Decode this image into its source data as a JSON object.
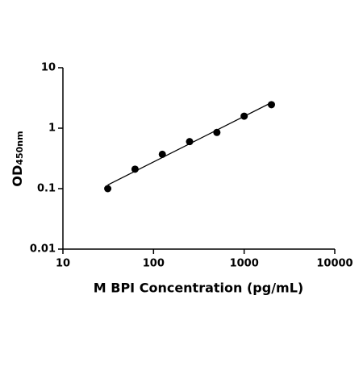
{
  "chart_data": {
    "type": "scatter",
    "x_label": "M BPI Concentration (pg/mL)",
    "y_label": "OD",
    "y_label_sub": "450nm",
    "x": [
      31.25,
      62.5,
      125,
      250,
      500,
      1000,
      2000
    ],
    "series": [
      {
        "color": "#000000",
        "values": [
          0.1,
          0.21,
          0.37,
          0.6,
          0.85,
          1.58,
          2.45
        ]
      }
    ],
    "fit": {
      "x": [
        31.25,
        2000
      ],
      "values": [
        0.115,
        2.65
      ],
      "color": "#000000"
    },
    "xscale": "log",
    "yscale": "log",
    "xlim": [
      10,
      10000
    ],
    "ylim": [
      0.01,
      10
    ],
    "xticks": [
      10,
      100,
      1000,
      10000
    ],
    "yticks": [
      0.01,
      0.1,
      1,
      10
    ],
    "grid": false
  }
}
